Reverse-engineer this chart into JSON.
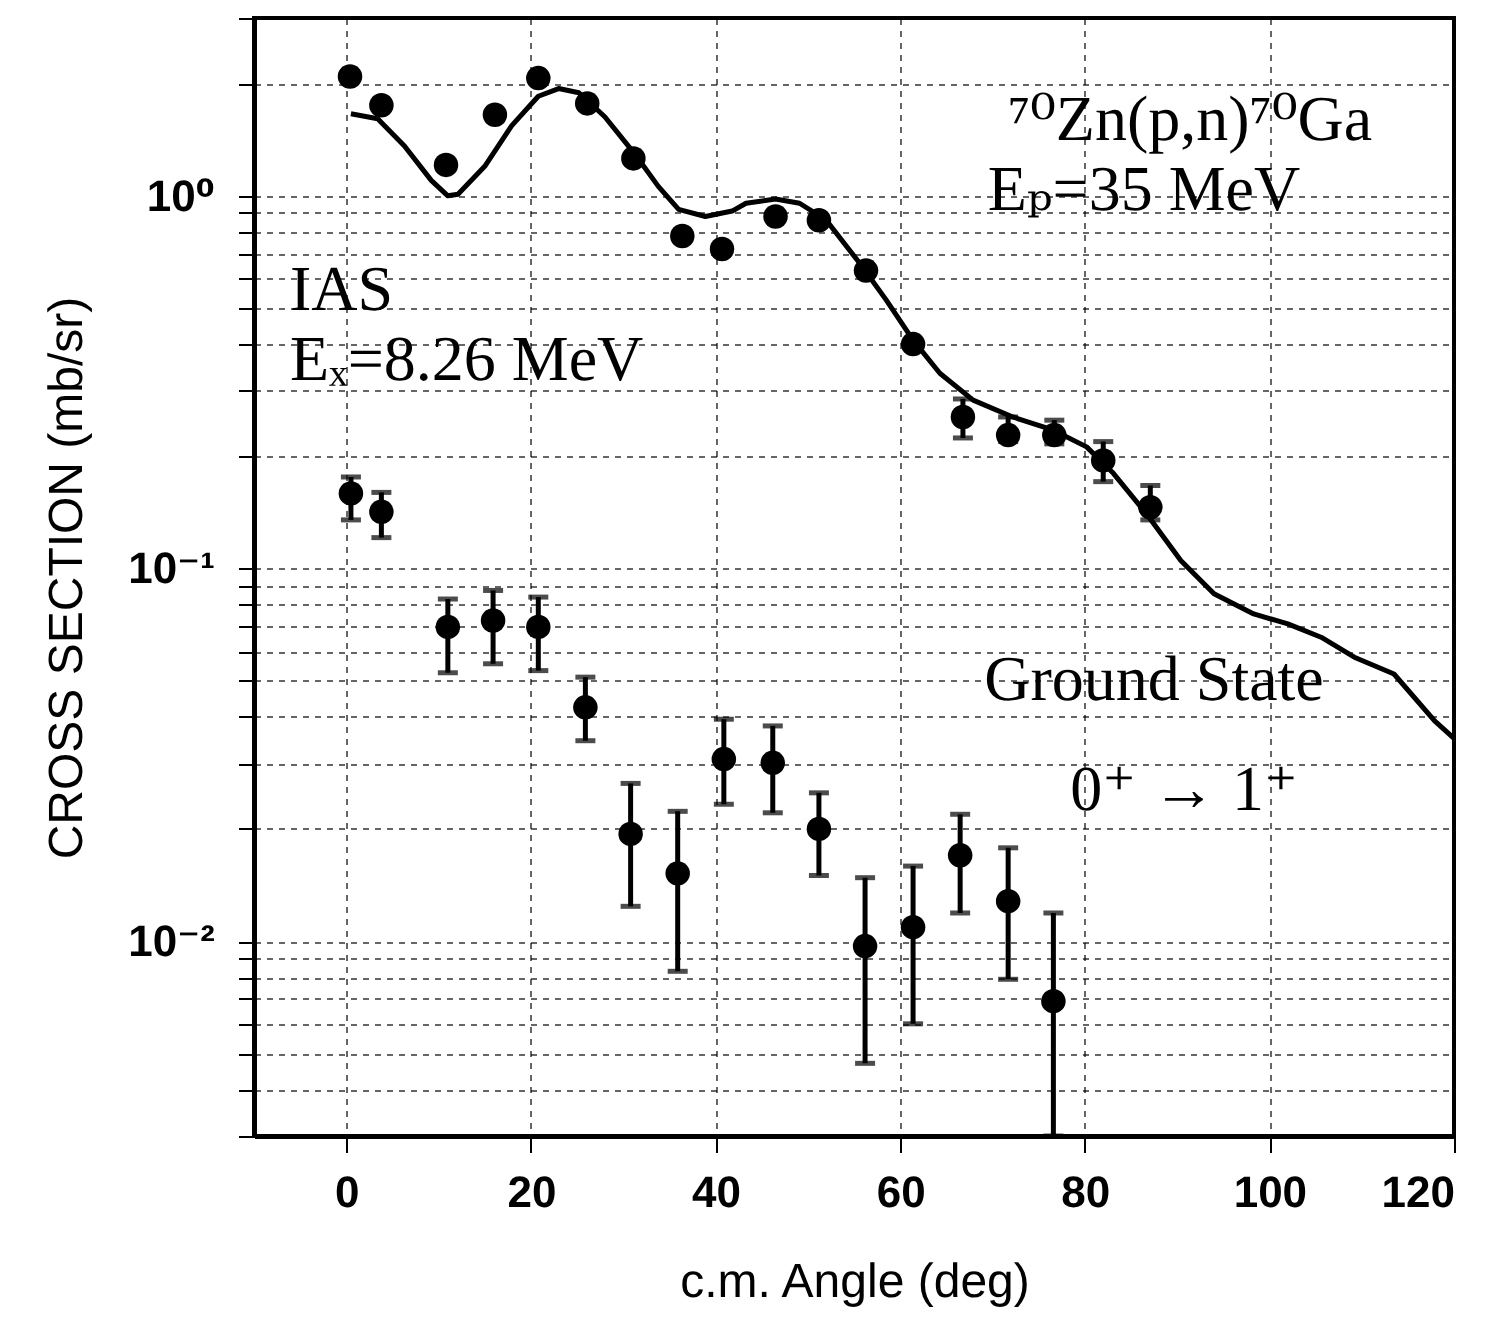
{
  "chart_data": {
    "type": "scatter",
    "xlabel": "c.m. Angle (deg)",
    "ylabel": "CROSS SECTION (mb/sr)",
    "annotations": [
      "⁷⁰Zn(p,n)⁷⁰Ga",
      "Eₚ=35 MeV",
      "IAS",
      "Eₓ=8.26 MeV",
      "Ground State",
      "0⁺ → 1⁺"
    ],
    "xlim": [
      -10,
      120
    ],
    "xticks": [
      0,
      20,
      40,
      60,
      80,
      100,
      120
    ],
    "ylim": [
      0.003,
      3
    ],
    "log": true,
    "grid": true,
    "yticks": [
      {
        "value": 0.003,
        "label": null
      },
      {
        "value": 0.004,
        "label": null
      },
      {
        "value": 0.005,
        "label": null
      },
      {
        "value": 0.006,
        "label": null
      },
      {
        "value": 0.007,
        "label": null
      },
      {
        "value": 0.008,
        "label": null
      },
      {
        "value": 0.009,
        "label": null
      },
      {
        "value": 0.01,
        "label": "10⁻²"
      },
      {
        "value": 0.02,
        "label": null
      },
      {
        "value": 0.03,
        "label": null
      },
      {
        "value": 0.04,
        "label": null
      },
      {
        "value": 0.05,
        "label": null
      },
      {
        "value": 0.06,
        "label": null
      },
      {
        "value": 0.07,
        "label": null
      },
      {
        "value": 0.08,
        "label": null
      },
      {
        "value": 0.09,
        "label": null
      },
      {
        "value": 0.1,
        "label": "10⁻¹"
      },
      {
        "value": 0.2,
        "label": null
      },
      {
        "value": 0.3,
        "label": null
      },
      {
        "value": 0.4,
        "label": null
      },
      {
        "value": 0.5,
        "label": null
      },
      {
        "value": 0.6,
        "label": null
      },
      {
        "value": 0.7,
        "label": null
      },
      {
        "value": 0.8,
        "label": null
      },
      {
        "value": 0.9,
        "label": null
      },
      {
        "value": 1,
        "label": "10⁰"
      },
      {
        "value": 2,
        "label": null
      },
      {
        "value": 3,
        "label": null
      }
    ],
    "series": [
      {
        "marker": "circle",
        "color": "#000000",
        "x": [
          0.4,
          3.8,
          10.8,
          16.1,
          20.8,
          26.1,
          31.1,
          36.4,
          40.7,
          46.5,
          51.2,
          56.3,
          61.4,
          66.8,
          71.7,
          76.7,
          82.0,
          87.1
        ],
        "values": [
          2.09,
          1.75,
          1.21,
          1.65,
          2.07,
          1.77,
          1.26,
          0.78,
          0.72,
          0.88,
          0.86,
          0.63,
          0.4,
          0.255,
          0.228,
          0.228,
          0.195,
          0.146
        ],
        "errors": [
          null,
          null,
          null,
          null,
          null,
          null,
          null,
          null,
          null,
          null,
          null,
          null,
          null,
          [
            0.224,
            0.285
          ],
          [
            0.219,
            0.255
          ],
          [
            0.216,
            0.25
          ],
          [
            0.171,
            0.219
          ],
          [
            0.135,
            0.167
          ]
        ]
      },
      {
        "marker": "circle",
        "color": "#000000",
        "x": [
          0.5,
          3.8,
          11.0,
          15.9,
          20.8,
          25.9,
          30.8,
          35.9,
          40.9,
          46.2,
          51.2,
          56.2,
          61.4,
          66.5,
          71.7,
          76.6
        ],
        "values": [
          0.159,
          0.142,
          0.0697,
          0.0725,
          0.0697,
          0.0424,
          0.0194,
          0.0152,
          0.0308,
          0.0301,
          0.02,
          0.0097,
          0.0109,
          0.017,
          0.0128,
          0.0069
        ],
        "errors": [
          [
            0.135,
            0.176
          ],
          [
            0.121,
            0.16
          ],
          [
            0.0525,
            0.0828
          ],
          [
            0.0555,
            0.0873
          ],
          [
            0.0532,
            0.0838
          ],
          [
            0.0345,
            0.0511
          ],
          [
            0.0124,
            0.0265
          ],
          [
            0.0083,
            0.0223
          ],
          [
            0.0233,
            0.0394
          ],
          [
            0.0221,
            0.0378
          ],
          [
            0.015,
            0.025
          ],
          [
            0.0047,
            0.0148
          ],
          [
            0.006,
            0.0159
          ],
          [
            0.0119,
            0.0219
          ],
          [
            0.0079,
            0.0178
          ],
          [
            0.003,
            0.0119
          ]
        ]
      },
      {
        "type": "line",
        "color": "#000000",
        "x": [
          0.5,
          3.4,
          6.3,
          9.2,
          11.0,
          12.1,
          15.0,
          17.9,
          20.8,
          23.0,
          25.2,
          28.0,
          31.2,
          33.8,
          36.0,
          38.9,
          41.8,
          43.3,
          46.5,
          49.1,
          52.0,
          55.6,
          58.5,
          61.4,
          64.3,
          67.9,
          72.2,
          76.6,
          80.2,
          83.1,
          86.7,
          90.4,
          94.0,
          98.3,
          102.0,
          105.6,
          109.2,
          113.5,
          117.9,
          120
        ],
        "values": [
          1.66,
          1.61,
          1.36,
          1.1,
          1.0,
          1.01,
          1.2,
          1.54,
          1.85,
          1.94,
          1.89,
          1.63,
          1.3,
          1.06,
          0.92,
          0.88,
          0.91,
          0.955,
          0.98,
          0.955,
          0.86,
          0.66,
          0.525,
          0.41,
          0.334,
          0.283,
          0.255,
          0.235,
          0.212,
          0.18,
          0.14,
          0.105,
          0.0855,
          0.0755,
          0.071,
          0.0654,
          0.0578,
          0.0521,
          0.039,
          0.035
        ]
      }
    ]
  }
}
